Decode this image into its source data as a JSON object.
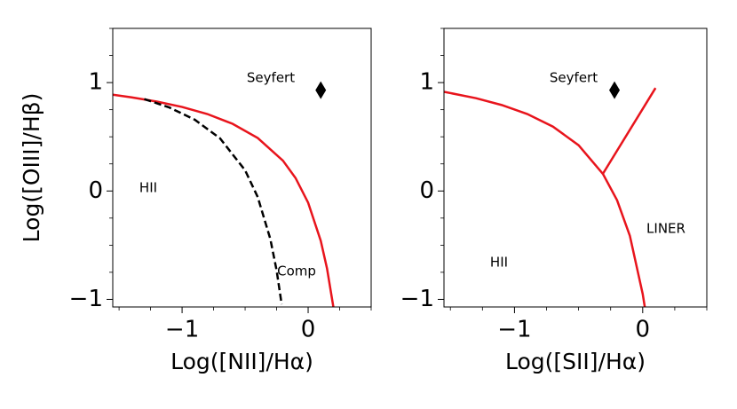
{
  "chart_data": [
    {
      "type": "line",
      "ylabel": "Log([OIII]/Hβ)",
      "xlabel": "Log([NII]/Hα)",
      "xlim": [
        -1.55,
        0.5
      ],
      "ylim": [
        -1.07,
        1.5
      ],
      "xticks": [
        {
          "value": -1,
          "label": "−1"
        },
        0
      ],
      "yticks": [
        {
          "value": -1,
          "label": "−1"
        },
        0,
        1
      ],
      "xminor": [
        -1.5,
        -1.25,
        -0.75,
        -0.5,
        -0.25,
        0.25,
        0.5
      ],
      "yminor": [
        -0.75,
        -0.5,
        -0.25,
        0.25,
        0.5,
        0.75,
        1.25,
        1.5
      ],
      "annotations": [
        "Seyfert",
        "HII",
        "Comp"
      ],
      "series": [
        {
          "color": "#e8141c",
          "style": "solid",
          "x": [
            -1.55,
            -1.4,
            -1.2,
            -1.0,
            -0.8,
            -0.6,
            -0.4,
            -0.2,
            -0.1,
            0,
            0.1,
            0.15,
            0.2
          ],
          "values": [
            0.888,
            0.864,
            0.825,
            0.775,
            0.71,
            0.62,
            0.489,
            0.28,
            0.12,
            -0.108,
            -0.459,
            -0.716,
            -1.069
          ]
        },
        {
          "color": "#000000",
          "style": "dashed",
          "x": [
            -1.3,
            -1.1,
            -0.9,
            -0.7,
            -0.5,
            -0.4,
            -0.3,
            -0.25,
            -0.21
          ],
          "values": [
            0.848,
            0.77,
            0.658,
            0.487,
            0.191,
            -0.056,
            -0.443,
            -0.733,
            -1.046
          ]
        },
        {
          "color": "#000000",
          "marker": "diamond",
          "x": [
            0.1
          ],
          "values": [
            0.93
          ]
        }
      ]
    },
    {
      "type": "line",
      "xlabel": "Log([SII]/Hα)",
      "xlim": [
        -1.55,
        0.5
      ],
      "ylim": [
        -1.07,
        1.5
      ],
      "xticks": [
        {
          "value": -1,
          "label": "−1"
        },
        0
      ],
      "yticks": [
        {
          "value": -1,
          "label": "−1"
        },
        0,
        1
      ],
      "xminor": [
        -1.5,
        -1.25,
        -0.75,
        -0.5,
        -0.25,
        0.25,
        0.5
      ],
      "yminor": [
        -0.75,
        -0.5,
        -0.25,
        0.25,
        0.5,
        0.75,
        1.25,
        1.5
      ],
      "annotations": [
        "Seyfert",
        "LINER",
        "HII"
      ],
      "series": [
        {
          "color": "#e8141c",
          "style": "solid",
          "x": [
            -1.55,
            -1.3,
            -1.1,
            -0.9,
            -0.7,
            -0.5,
            -0.31,
            -0.2,
            -0.1,
            0,
            0.016
          ],
          "values": [
            0.915,
            0.856,
            0.793,
            0.71,
            0.594,
            0.422,
            0.157,
            -0.085,
            -0.414,
            -0.95,
            -1.068
          ]
        },
        {
          "color": "#e8141c",
          "style": "solid",
          "x": [
            -0.31,
            0.1
          ],
          "values": [
            0.16,
            0.95
          ]
        },
        {
          "color": "#000000",
          "marker": "diamond",
          "x": [
            -0.22
          ],
          "values": [
            0.93
          ]
        }
      ]
    }
  ]
}
